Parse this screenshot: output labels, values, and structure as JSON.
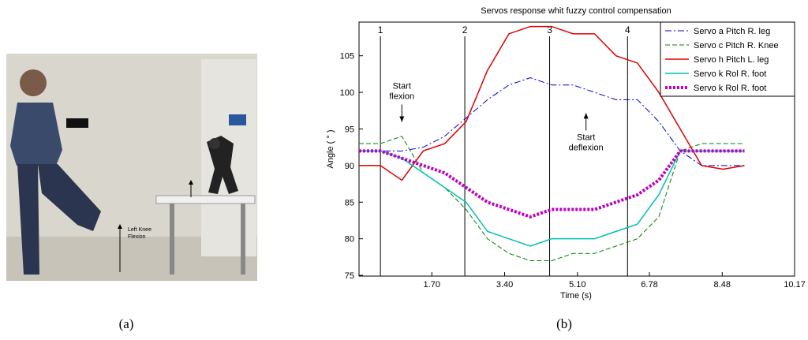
{
  "photo": {
    "annotation": [
      "Left Knee",
      "Flexion"
    ]
  },
  "captions": [
    "(a)",
    "(b)"
  ],
  "chart_data": {
    "type": "line",
    "title": "Servos response whit fuzzy control compensation",
    "x_label": "Time (s)",
    "y_label": "Angle ( ° )",
    "x": [
      0,
      0.5,
      1.0,
      1.5,
      2.0,
      2.5,
      3.0,
      3.5,
      4.0,
      4.5,
      5.0,
      5.5,
      6.0,
      6.5,
      7.0,
      7.5,
      8.0,
      8.5,
      9.0
    ],
    "series": [
      {
        "name": "Servo a Pitch R. leg",
        "color": "#0000cc",
        "dash": "8 3 2 3",
        "width": 1,
        "values": [
          92,
          92,
          92,
          92.5,
          94,
          96.5,
          99,
          101,
          102,
          101,
          101,
          100,
          99,
          99,
          96,
          92,
          90,
          90,
          90
        ]
      },
      {
        "name": "Servo c Pitch R. Knee",
        "color": "#008000",
        "dash": "6 3",
        "width": 1,
        "values": [
          93,
          93,
          94,
          89,
          87,
          84,
          80,
          78,
          77,
          77,
          78,
          78,
          79,
          80,
          83,
          92,
          93,
          93,
          93
        ]
      },
      {
        "name": "Servo h Pitch L. leg",
        "color": "#e00000",
        "dash": "",
        "width": 1.5,
        "values": [
          90,
          90,
          88,
          92,
          93,
          96,
          103,
          108,
          109,
          109,
          108,
          108,
          105,
          104,
          100,
          95,
          90,
          89.5,
          90
        ]
      },
      {
        "name": "Servo k Rol R. foot",
        "color": "#00c0b0",
        "dash": "",
        "width": 1.5,
        "values": [
          92,
          92,
          91,
          89,
          87,
          85,
          81,
          80,
          79,
          80,
          80,
          80,
          81,
          82,
          86,
          92,
          92,
          92,
          92
        ]
      },
      {
        "name": "Servo k Rol R. foot",
        "color": "#c000c0",
        "dash": "3 2",
        "width": 4,
        "values": [
          92,
          92,
          91,
          90,
          89,
          87,
          85,
          84,
          83,
          84,
          84,
          84,
          85,
          86,
          88,
          92,
          92,
          92,
          92
        ]
      }
    ],
    "xlim": [
      0,
      10.17
    ],
    "ylim": [
      74.9,
      109.6
    ],
    "xticks": [
      {
        "value": 1.7,
        "label": "1.70"
      },
      {
        "value": 3.4,
        "label": "3.40"
      },
      {
        "value": 5.1,
        "label": "5.10"
      },
      6.78,
      8.48,
      10.17
    ],
    "yticks": [
      75,
      80,
      85,
      90,
      95,
      100,
      105
    ],
    "markers": [
      {
        "x": 0.5,
        "label": "1"
      },
      {
        "x": 2.47,
        "label": "2"
      },
      {
        "x": 4.45,
        "label": "3"
      },
      {
        "x": 6.27,
        "label": "4"
      }
    ],
    "annotations": [
      {
        "text": [
          "Start",
          "flexion"
        ],
        "x": 1.0,
        "y": 100.5,
        "arrow": "down"
      },
      {
        "text": [
          "Start",
          "deflexion"
        ],
        "x": 5.3,
        "y": 93.5,
        "arrow": "up"
      }
    ],
    "legend": "upper right"
  }
}
